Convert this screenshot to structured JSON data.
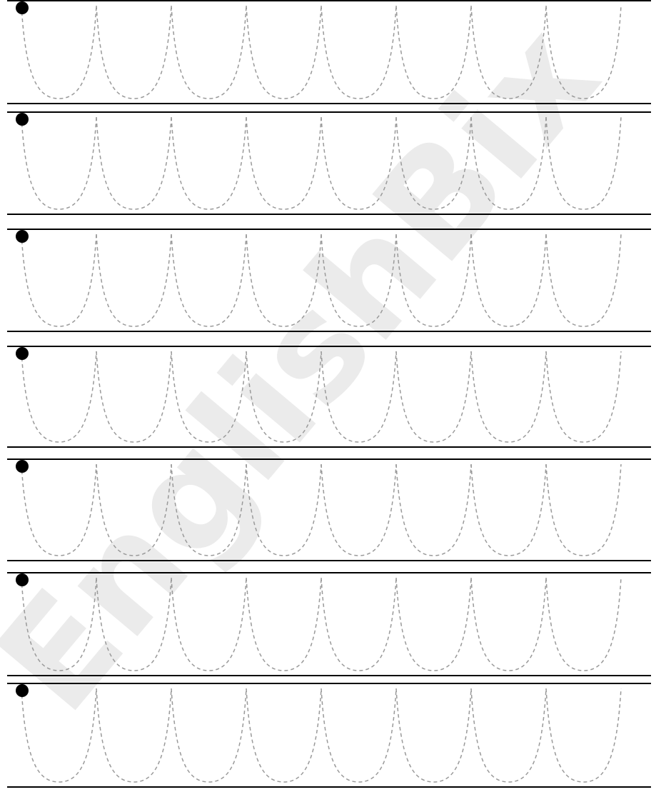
{
  "watermark": {
    "text": "EnglishBix",
    "color": "#ebebeb"
  },
  "worksheet": {
    "row_count": 7,
    "loops_per_row": 8,
    "rule_color": "#000000",
    "trace_color": "#9a9a9a",
    "start_dot_color": "#000000",
    "icons": {
      "start_marker": "start-dot-icon",
      "trace_shape": "u-loop-trace-icon"
    }
  }
}
